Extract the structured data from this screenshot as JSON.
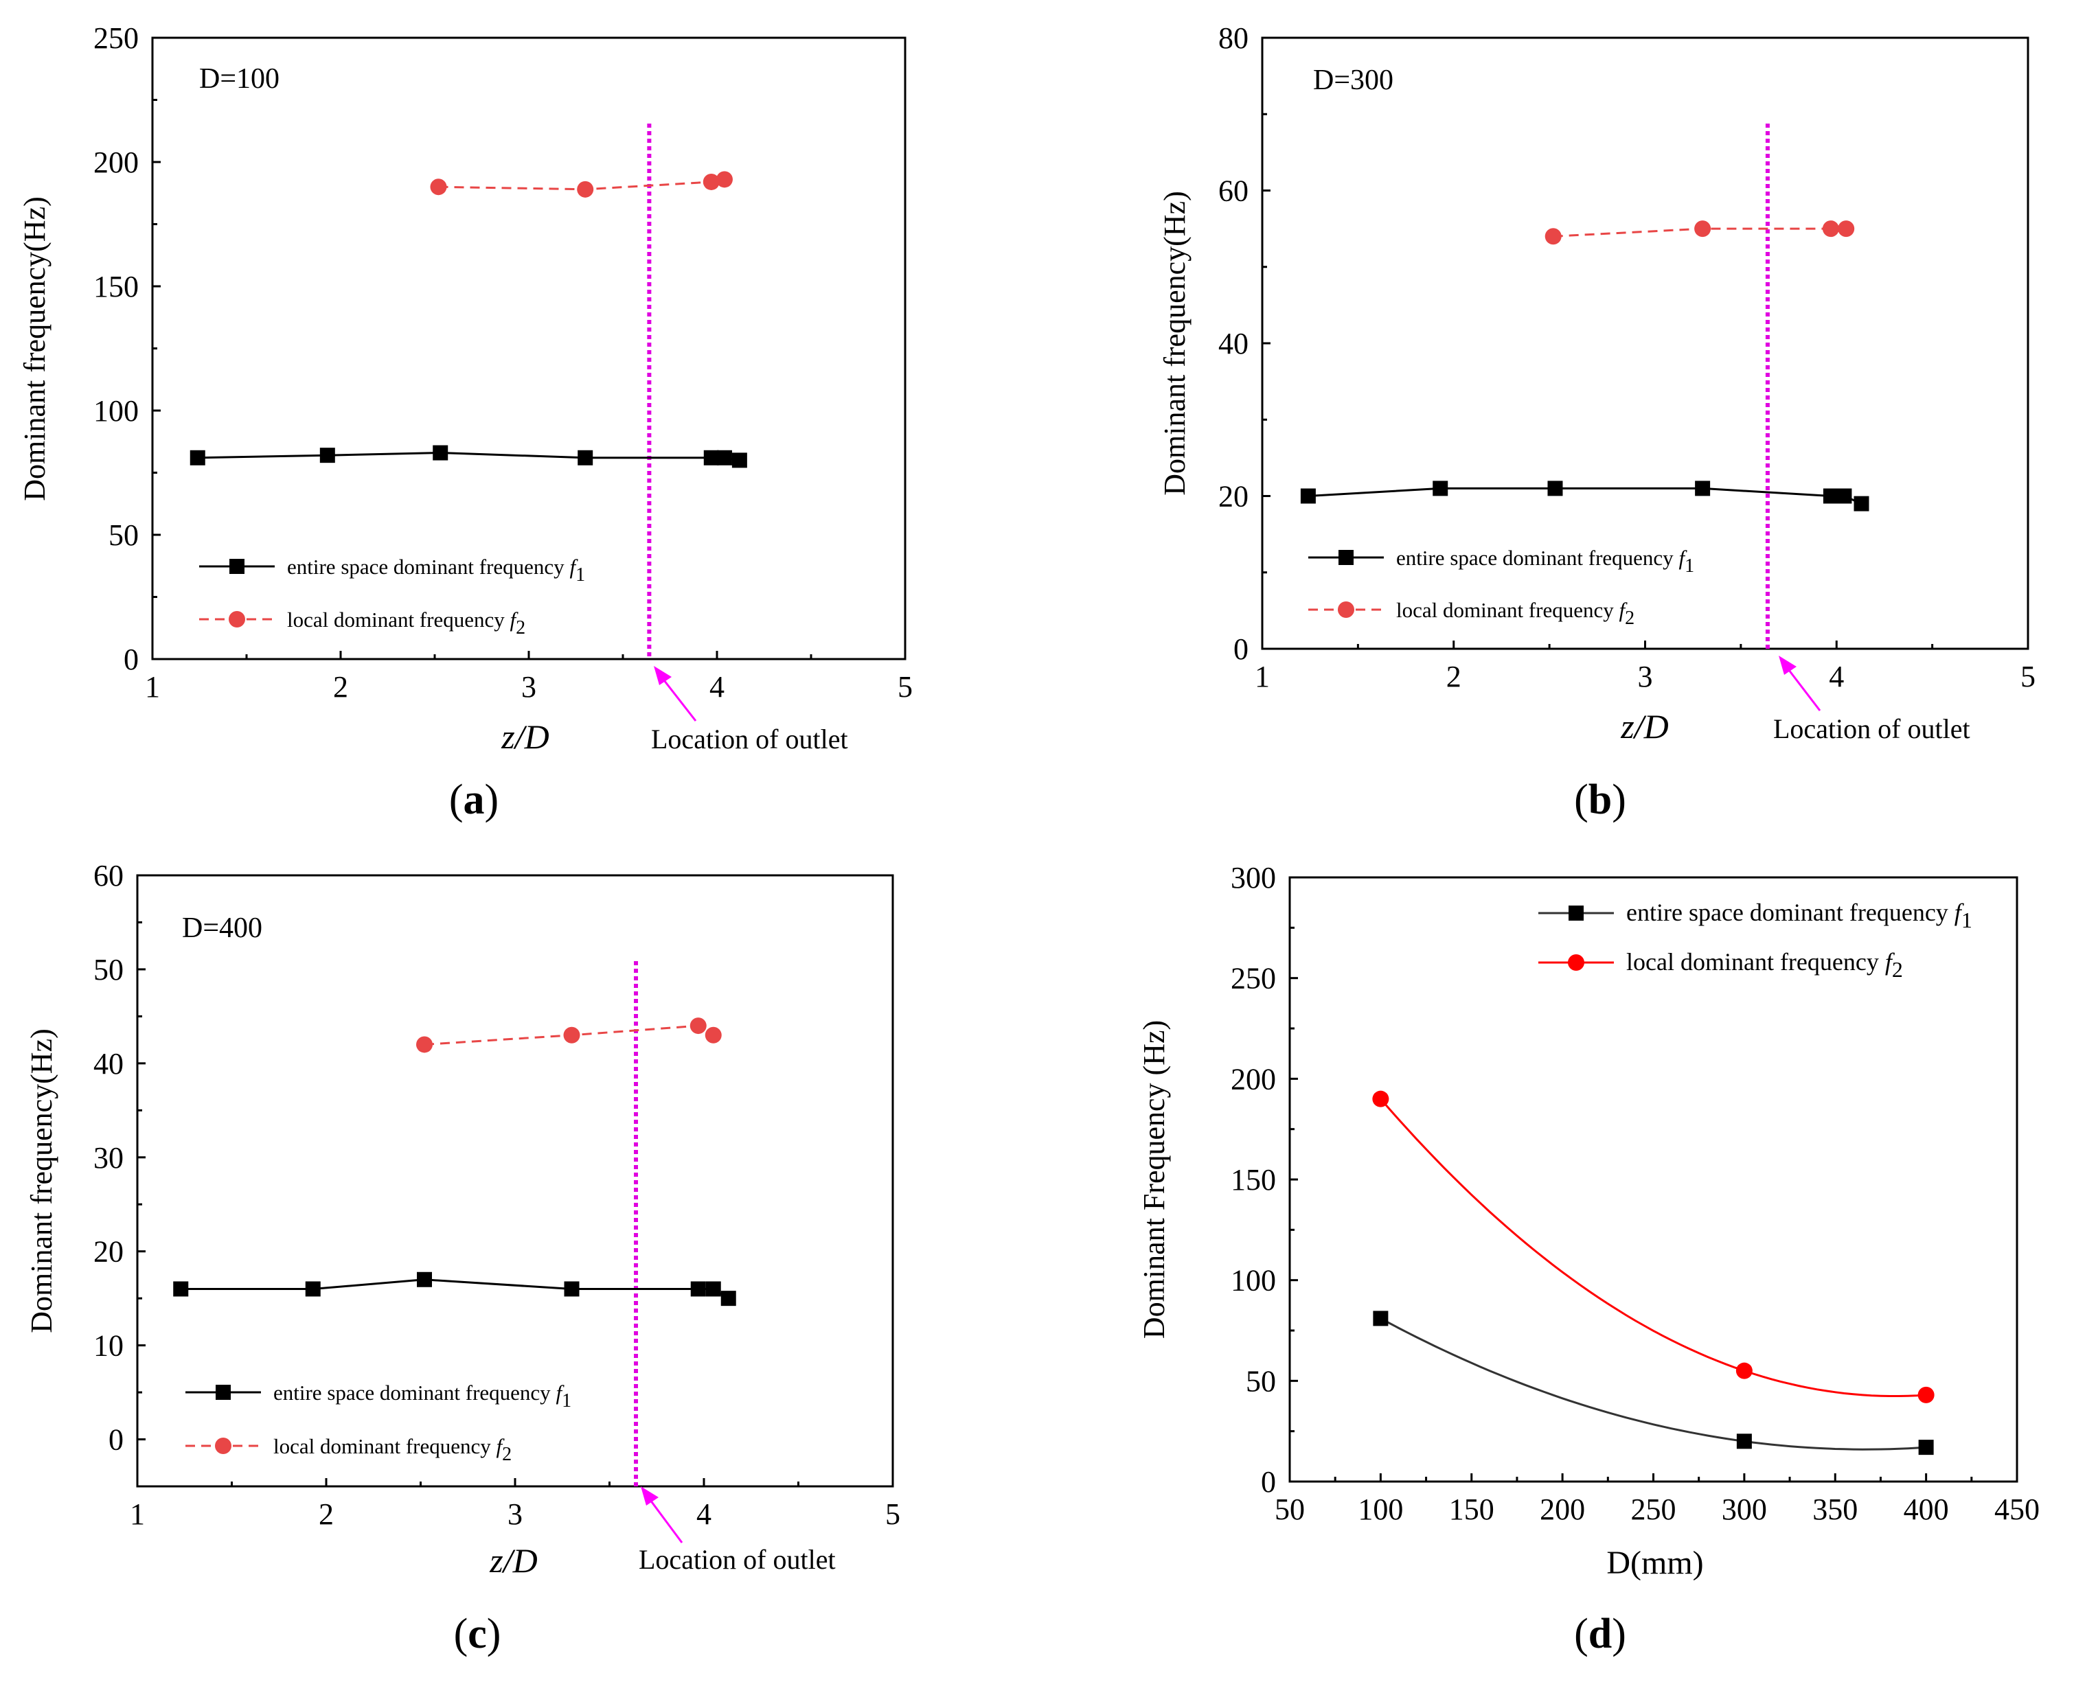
{
  "charts": [
    {
      "panel_label": "a",
      "type": "line",
      "plot_title": "D=100",
      "annotation": "Location of outlet",
      "outlet_position": 3.64,
      "xlim": [
        1,
        5
      ],
      "ylim": [
        0,
        250
      ],
      "xticks": [
        1,
        2,
        3,
        4,
        5
      ],
      "yticks": [
        0,
        50,
        100,
        150,
        200,
        250
      ],
      "xlabel": "z/D",
      "ylabel": "Dominant frequency(Hz)",
      "series": [
        {
          "name": "entire space dominant frequency f1",
          "label": "entire space dominant frequency ",
          "sym": "f",
          "subscript": "1",
          "color": "#000000",
          "marker": "square",
          "line": "solid",
          "x": [
            1.24,
            1.93,
            2.53,
            3.3,
            3.97,
            4.04,
            4.12
          ],
          "y": [
            81,
            82,
            83,
            81,
            81,
            81,
            80
          ]
        },
        {
          "name": "local dominant frequency f2",
          "label": "local dominant frequency ",
          "sym": "f",
          "subscript": "2",
          "color": "#e84646",
          "marker": "circle",
          "line": "dashed",
          "x": [
            2.52,
            3.3,
            3.97,
            4.04
          ],
          "y": [
            190,
            189,
            192,
            193
          ]
        }
      ]
    },
    {
      "panel_label": "b",
      "type": "line",
      "plot_title": "D=300",
      "annotation": "Location of outlet",
      "outlet_position": 3.64,
      "xlim": [
        1,
        5
      ],
      "ylim": [
        0,
        80
      ],
      "xticks": [
        1,
        2,
        3,
        4,
        5
      ],
      "yticks": [
        0,
        20,
        40,
        60,
        80
      ],
      "xlabel": "z/D",
      "ylabel": "Dominant frequency(Hz)",
      "series": [
        {
          "name": "entire space dominant frequency f1",
          "label": "entire space dominant frequency ",
          "sym": "f",
          "subscript": "1",
          "color": "#000000",
          "marker": "square",
          "line": "solid",
          "x": [
            1.24,
            1.93,
            2.53,
            3.3,
            3.97,
            4.04,
            4.13
          ],
          "y": [
            20,
            21,
            21,
            21,
            20,
            20,
            19
          ]
        },
        {
          "name": "local dominant frequency f2",
          "label": "local dominant frequency ",
          "sym": "f",
          "subscript": "2",
          "color": "#e84646",
          "marker": "circle",
          "line": "dashed",
          "x": [
            2.52,
            3.3,
            3.97,
            4.05
          ],
          "y": [
            54,
            55,
            55,
            55
          ]
        }
      ]
    },
    {
      "panel_label": "c",
      "type": "line",
      "plot_title": "D=400",
      "annotation": "Location of outlet",
      "outlet_position": 3.64,
      "xlim": [
        1,
        5
      ],
      "ylim": [
        -5,
        60
      ],
      "xticks": [
        1,
        2,
        3,
        4,
        5
      ],
      "yticks": [
        0,
        10,
        20,
        30,
        40,
        50,
        60
      ],
      "xlabel": "z/D",
      "ylabel": "Dominant frequency(Hz)",
      "series": [
        {
          "name": "entire space dominant frequency f1",
          "label": "entire space dominant frequency ",
          "sym": "f",
          "subscript": "1",
          "color": "#000000",
          "marker": "square",
          "line": "solid",
          "x": [
            1.23,
            1.93,
            2.52,
            3.3,
            3.97,
            4.05,
            4.13
          ],
          "y": [
            16,
            16,
            17,
            16,
            16,
            16,
            15
          ]
        },
        {
          "name": "local dominant frequency f2",
          "label": "local dominant frequency ",
          "sym": "f",
          "subscript": "2",
          "color": "#e84646",
          "marker": "circle",
          "line": "dashed",
          "x": [
            2.52,
            3.3,
            3.97,
            4.05
          ],
          "y": [
            42,
            43,
            44,
            43
          ]
        }
      ]
    },
    {
      "panel_label": "d",
      "type": "line",
      "plot_title": "",
      "xlim": [
        50,
        450
      ],
      "ylim": [
        0,
        300
      ],
      "xticks": [
        50,
        100,
        150,
        200,
        250,
        300,
        350,
        400,
        450
      ],
      "yticks": [
        0,
        50,
        100,
        150,
        200,
        250,
        300
      ],
      "xlabel": "D(mm)",
      "ylabel": "Dominant Frequency (Hz)",
      "series": [
        {
          "name": "entire space dominant frequency f1",
          "label": "entire space dominant frequency ",
          "sym": "f",
          "subscript": "1",
          "color": "#000000",
          "line_color": "#333333",
          "marker": "square",
          "line": "smooth",
          "x": [
            100,
            300,
            400
          ],
          "y": [
            81,
            20,
            17
          ]
        },
        {
          "name": "local dominant frequency f2",
          "label": "local dominant frequency ",
          "sym": "f",
          "subscript": "2",
          "color": "#ff0000",
          "line_color": "#ff0000",
          "marker": "circle",
          "line": "smooth",
          "x": [
            100,
            300,
            400
          ],
          "y": [
            190,
            55,
            43
          ]
        }
      ]
    }
  ]
}
